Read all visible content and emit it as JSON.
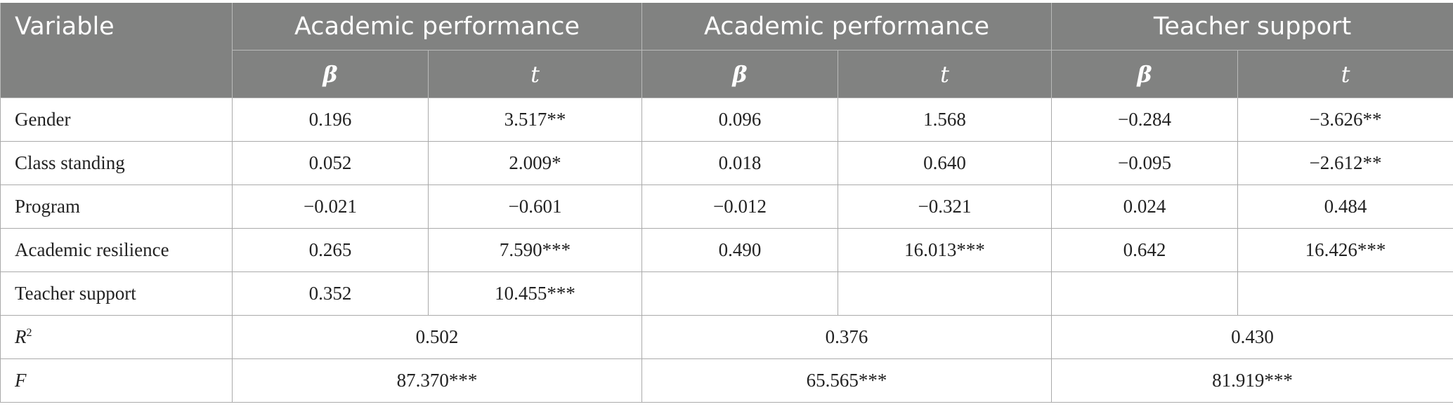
{
  "header": {
    "variable": "Variable",
    "models": [
      {
        "label": "Academic performance"
      },
      {
        "label": "Academic performance"
      },
      {
        "label": "Teacher support"
      }
    ],
    "beta": "β",
    "t": "t"
  },
  "rows": [
    {
      "label": "Gender",
      "cells": [
        "0.196",
        "3.517**",
        "0.096",
        "1.568",
        "−0.284",
        "−3.626**"
      ]
    },
    {
      "label": "Class standing",
      "cells": [
        "0.052",
        "2.009*",
        "0.018",
        "0.640",
        "−0.095",
        "−2.612**"
      ]
    },
    {
      "label": "Program",
      "cells": [
        "−0.021",
        "−0.601",
        "−0.012",
        "−0.321",
        "0.024",
        "0.484"
      ]
    },
    {
      "label": "Academic resilience",
      "cells": [
        "0.265",
        "7.590***",
        "0.490",
        "16.013***",
        "0.642",
        "16.426***"
      ]
    },
    {
      "label": "Teacher support",
      "cells": [
        "0.352",
        "10.455***",
        "",
        "",
        "",
        ""
      ]
    }
  ],
  "r2": {
    "label": "R",
    "sup": "2",
    "values": [
      "0.502",
      "0.376",
      "0.430"
    ]
  },
  "f": {
    "label": "F",
    "values": [
      "87.370***",
      "65.565***",
      "81.919***"
    ]
  }
}
